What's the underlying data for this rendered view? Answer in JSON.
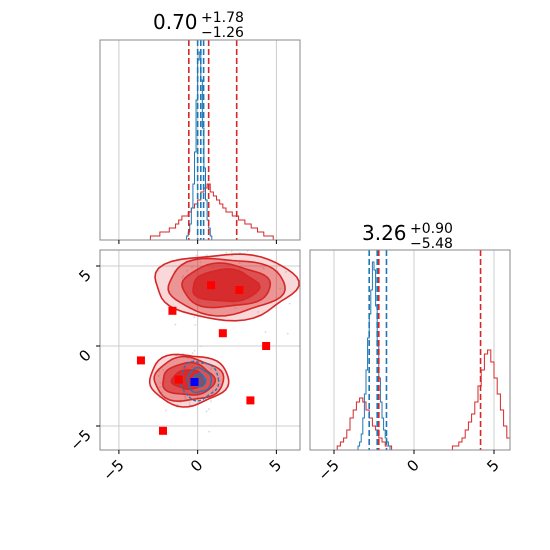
{
  "chart_data": {
    "type": "corner",
    "colors": {
      "reference": "#d62728",
      "samples": "#1f77b4",
      "point_red": "#ff0000",
      "point_blue": "#0000ff",
      "grid": "#cccccc"
    },
    "parameters": [
      {
        "title": {
          "value": "0.70",
          "upper": "+1.78",
          "lower": "−1.26"
        },
        "range": [
          -6.2,
          6.5
        ],
        "quantile_lines_red": [
          -0.56,
          0.7,
          2.48
        ],
        "quantile_lines_blue": [
          0.0,
          0.2,
          0.38
        ],
        "hist_red": {
          "x0": -3.2,
          "step": 0.2,
          "values": [
            0,
            1,
            1,
            1,
            2,
            2,
            2,
            3,
            3,
            4,
            5,
            6,
            6,
            7,
            8,
            9,
            10,
            12,
            13,
            14,
            12,
            11,
            10,
            9,
            8,
            7,
            7,
            6,
            6,
            5,
            5,
            4,
            4,
            3,
            3,
            2,
            2,
            1,
            1,
            1
          ]
        },
        "hist_blue": {
          "x0": -0.8,
          "step": 0.1,
          "values": [
            0,
            1,
            2,
            4,
            8,
            14,
            22,
            35,
            45,
            47,
            40,
            28,
            18,
            10,
            5,
            3,
            1,
            0
          ]
        }
      },
      {
        "title": {
          "value": "3.26",
          "upper": "+0.90",
          "lower": "−5.48"
        },
        "range": [
          -6.5,
          6.0
        ],
        "ticks": [
          -5,
          0,
          5
        ],
        "tick_labels": [
          "−5",
          "0",
          "5"
        ],
        "quantile_lines_red": [
          -2.2,
          4.16
        ],
        "quantile_lines_blue": [
          -2.8,
          -2.3,
          -1.72
        ],
        "hist_red": {
          "x0": -5.0,
          "step": 0.2,
          "values": [
            0,
            1,
            2,
            3,
            5,
            8,
            10,
            12,
            13,
            12,
            10,
            8,
            6,
            5,
            3,
            2,
            1,
            1,
            0,
            0,
            0,
            0,
            0,
            0,
            0,
            0,
            0,
            0,
            0,
            0,
            0,
            0,
            0,
            0,
            0,
            0,
            0,
            1,
            1,
            2,
            3,
            5,
            7,
            9,
            12,
            16,
            20,
            24,
            25,
            22,
            18,
            14,
            10,
            6,
            3,
            1,
            0
          ]
        },
        "hist_blue": {
          "x0": -3.6,
          "step": 0.1,
          "values": [
            0,
            1,
            2,
            4,
            8,
            14,
            20,
            28,
            34,
            40,
            47,
            45,
            36,
            26,
            18,
            12,
            8,
            5,
            3,
            2,
            1,
            0
          ]
        }
      }
    ],
    "joint": {
      "x_ticks": [
        -5,
        0,
        5
      ],
      "x_tick_labels": [
        "−5",
        "0",
        "5"
      ],
      "y_ticks": [
        5,
        0,
        -5
      ],
      "y_tick_labels": [
        "5",
        "0",
        "−5"
      ],
      "red_squares": [
        {
          "x": 0.85,
          "y": 3.8
        },
        {
          "x": 2.65,
          "y": 3.5
        },
        {
          "x": -1.6,
          "y": 2.2
        },
        {
          "x": 1.6,
          "y": 0.8
        },
        {
          "x": 4.35,
          "y": 0.0
        },
        {
          "x": -3.6,
          "y": -0.9
        },
        {
          "x": -1.2,
          "y": -2.1
        },
        {
          "x": 3.35,
          "y": -3.4
        },
        {
          "x": -2.2,
          "y": -5.3
        }
      ],
      "blue_squares": [
        {
          "x": -0.2,
          "y": -2.25
        }
      ],
      "red_modes": [
        {
          "cx": 1.75,
          "cy": 3.75,
          "rx": [
            4.5,
            3.7,
            2.8,
            2.1
          ],
          "ry": [
            2.05,
            1.75,
            1.35,
            1.0
          ]
        },
        {
          "cx": -0.6,
          "cy": -2.1,
          "rx": [
            2.5,
            2.2,
            1.65,
            1.0
          ],
          "ry": [
            1.6,
            1.35,
            1.0,
            0.6
          ]
        }
      ],
      "blue_mode": {
        "cx": 0.1,
        "cy": -2.15,
        "rx": [
          1.2,
          0.75,
          0.4
        ],
        "ry": [
          1.2,
          0.75,
          0.4
        ]
      }
    }
  }
}
